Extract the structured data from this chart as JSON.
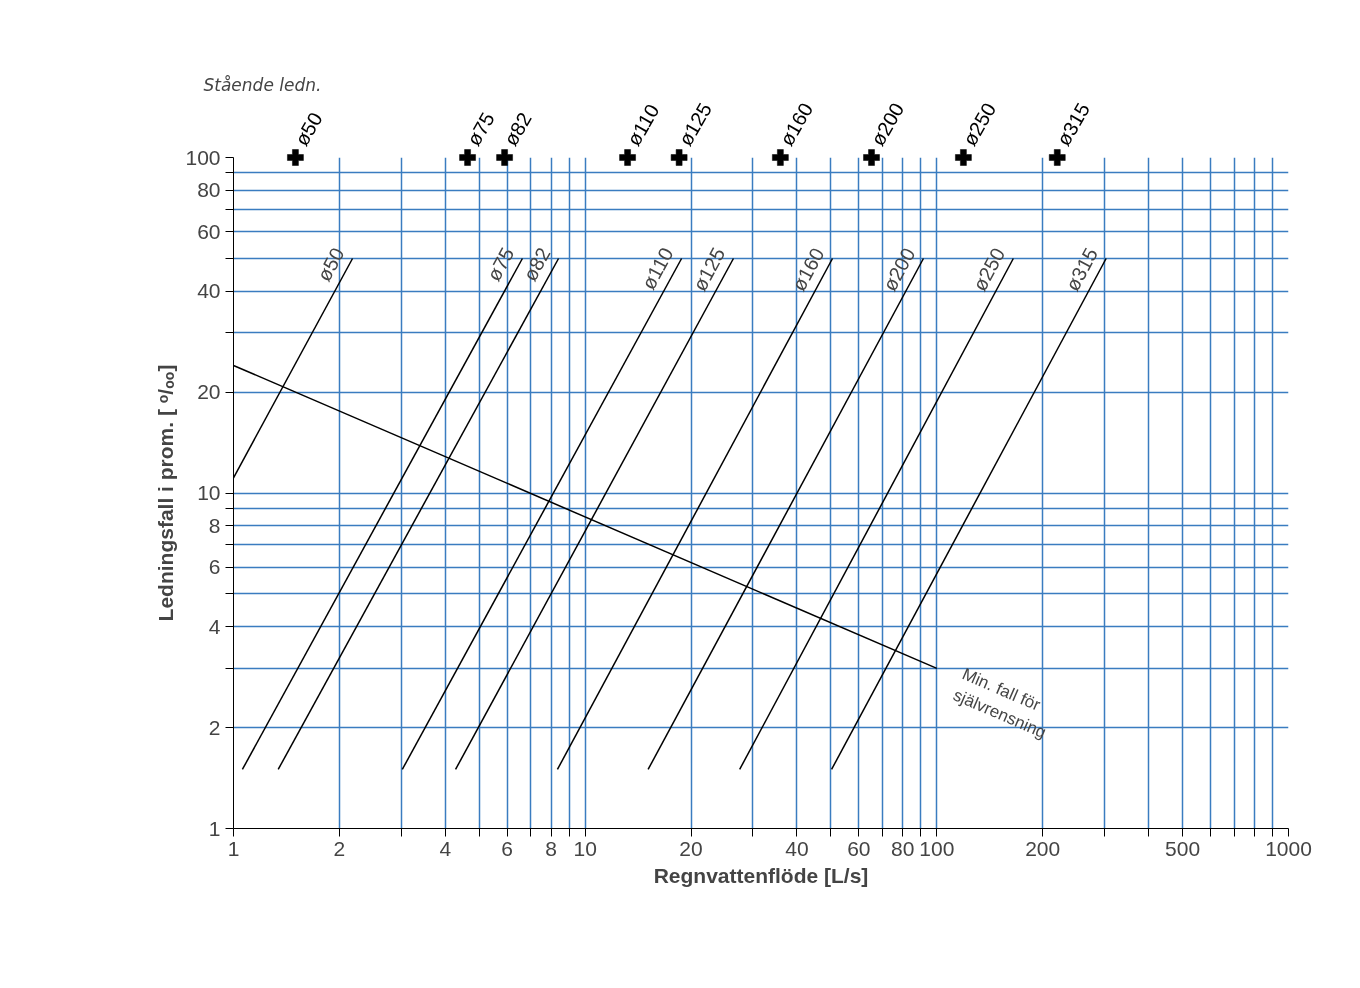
{
  "chart_data": {
    "type": "line",
    "xlabel": "Regnvattenflöde [L/s]",
    "ylabel": "Ledningsfall i prom. [ ᵒ/ₒₒ]",
    "log": "xy",
    "grid": true,
    "line_style": "solid",
    "xlim": [
      1,
      1000
    ],
    "ylim": [
      1,
      100
    ],
    "xticks": [
      1,
      2,
      {
        "value": 3,
        "label": null
      },
      4,
      {
        "value": 5,
        "label": null
      },
      6,
      {
        "value": 7,
        "label": null
      },
      8,
      {
        "value": 9,
        "label": null
      },
      10,
      20,
      {
        "value": 30,
        "label": null
      },
      40,
      {
        "value": 50,
        "label": null
      },
      60,
      {
        "value": 70,
        "label": null
      },
      80,
      {
        "value": 90,
        "label": null
      },
      100,
      200,
      {
        "value": 300,
        "label": null
      },
      {
        "value": 400,
        "label": null
      },
      500,
      {
        "value": 600,
        "label": null
      },
      {
        "value": 700,
        "label": null
      },
      {
        "value": 800,
        "label": null
      },
      {
        "value": 900,
        "label": null
      },
      1000
    ],
    "yticks": [
      1,
      2,
      {
        "value": 3,
        "label": null
      },
      4,
      {
        "value": 5,
        "label": null
      },
      6,
      {
        "value": 7,
        "label": null
      },
      8,
      {
        "value": 9,
        "label": null
      },
      10,
      20,
      {
        "value": 30,
        "label": null
      },
      40,
      {
        "value": 50,
        "label": null
      },
      60,
      {
        "value": 70,
        "label": null
      },
      80,
      {
        "value": 90,
        "label": null
      },
      100
    ],
    "series": [
      {
        "name": "ø50",
        "color": "#000000",
        "x": [
          1,
          2.18
        ],
        "values": [
          11.1,
          50
        ]
      },
      {
        "name": "ø75",
        "color": "#000000",
        "x": [
          1.06,
          6.63
        ],
        "values": [
          1.5,
          50
        ]
      },
      {
        "name": "ø82",
        "color": "#000000",
        "x": [
          1.34,
          8.4
        ],
        "values": [
          1.5,
          50
        ]
      },
      {
        "name": "ø110",
        "color": "#000000",
        "x": [
          3.02,
          18.8
        ],
        "values": [
          1.5,
          50
        ]
      },
      {
        "name": "ø125",
        "color": "#000000",
        "x": [
          4.28,
          26.4
        ],
        "values": [
          1.5,
          50
        ]
      },
      {
        "name": "ø160",
        "color": "#000000",
        "x": [
          8.34,
          50.5
        ],
        "values": [
          1.5,
          50
        ]
      },
      {
        "name": "ø200",
        "color": "#000000",
        "x": [
          15.1,
          91.6
        ],
        "values": [
          1.5,
          50
        ]
      },
      {
        "name": "ø250",
        "color": "#000000",
        "x": [
          27.5,
          165
        ],
        "values": [
          1.5,
          50
        ]
      },
      {
        "name": "ø315",
        "color": "#000000",
        "x": [
          50.2,
          303
        ],
        "values": [
          1.5,
          50
        ]
      },
      {
        "name": "Min. fall för självrensning",
        "color": "#000000",
        "x": [
          1,
          100
        ],
        "values": [
          24,
          3
        ]
      },
      {
        "type": "scatter",
        "marker": "cross",
        "color": "#000000",
        "x": [
          1.5,
          4.63,
          5.9,
          13.2,
          18.5,
          35.9,
          65.2,
          119,
          220
        ],
        "values": [
          100,
          100,
          100,
          100,
          100,
          100,
          100,
          100,
          100
        ]
      }
    ],
    "annotations": [
      "Stående ledn.",
      {
        "text": "ø50",
        "x": 1.5,
        "y": 100
      },
      {
        "text": "ø75",
        "x": 4.63,
        "y": 100
      },
      {
        "text": "ø82",
        "x": 5.9,
        "y": 100
      },
      {
        "text": "ø110",
        "x": 13.2,
        "y": 100
      },
      {
        "text": "ø125",
        "x": 18.5,
        "y": 100
      },
      {
        "text": "ø160",
        "x": 35.9,
        "y": 100
      },
      {
        "text": "ø200",
        "x": 65.2,
        "y": 100
      },
      {
        "text": "ø250",
        "x": 119,
        "y": 100
      },
      {
        "text": "ø315",
        "x": 220,
        "y": 100
      }
    ]
  }
}
